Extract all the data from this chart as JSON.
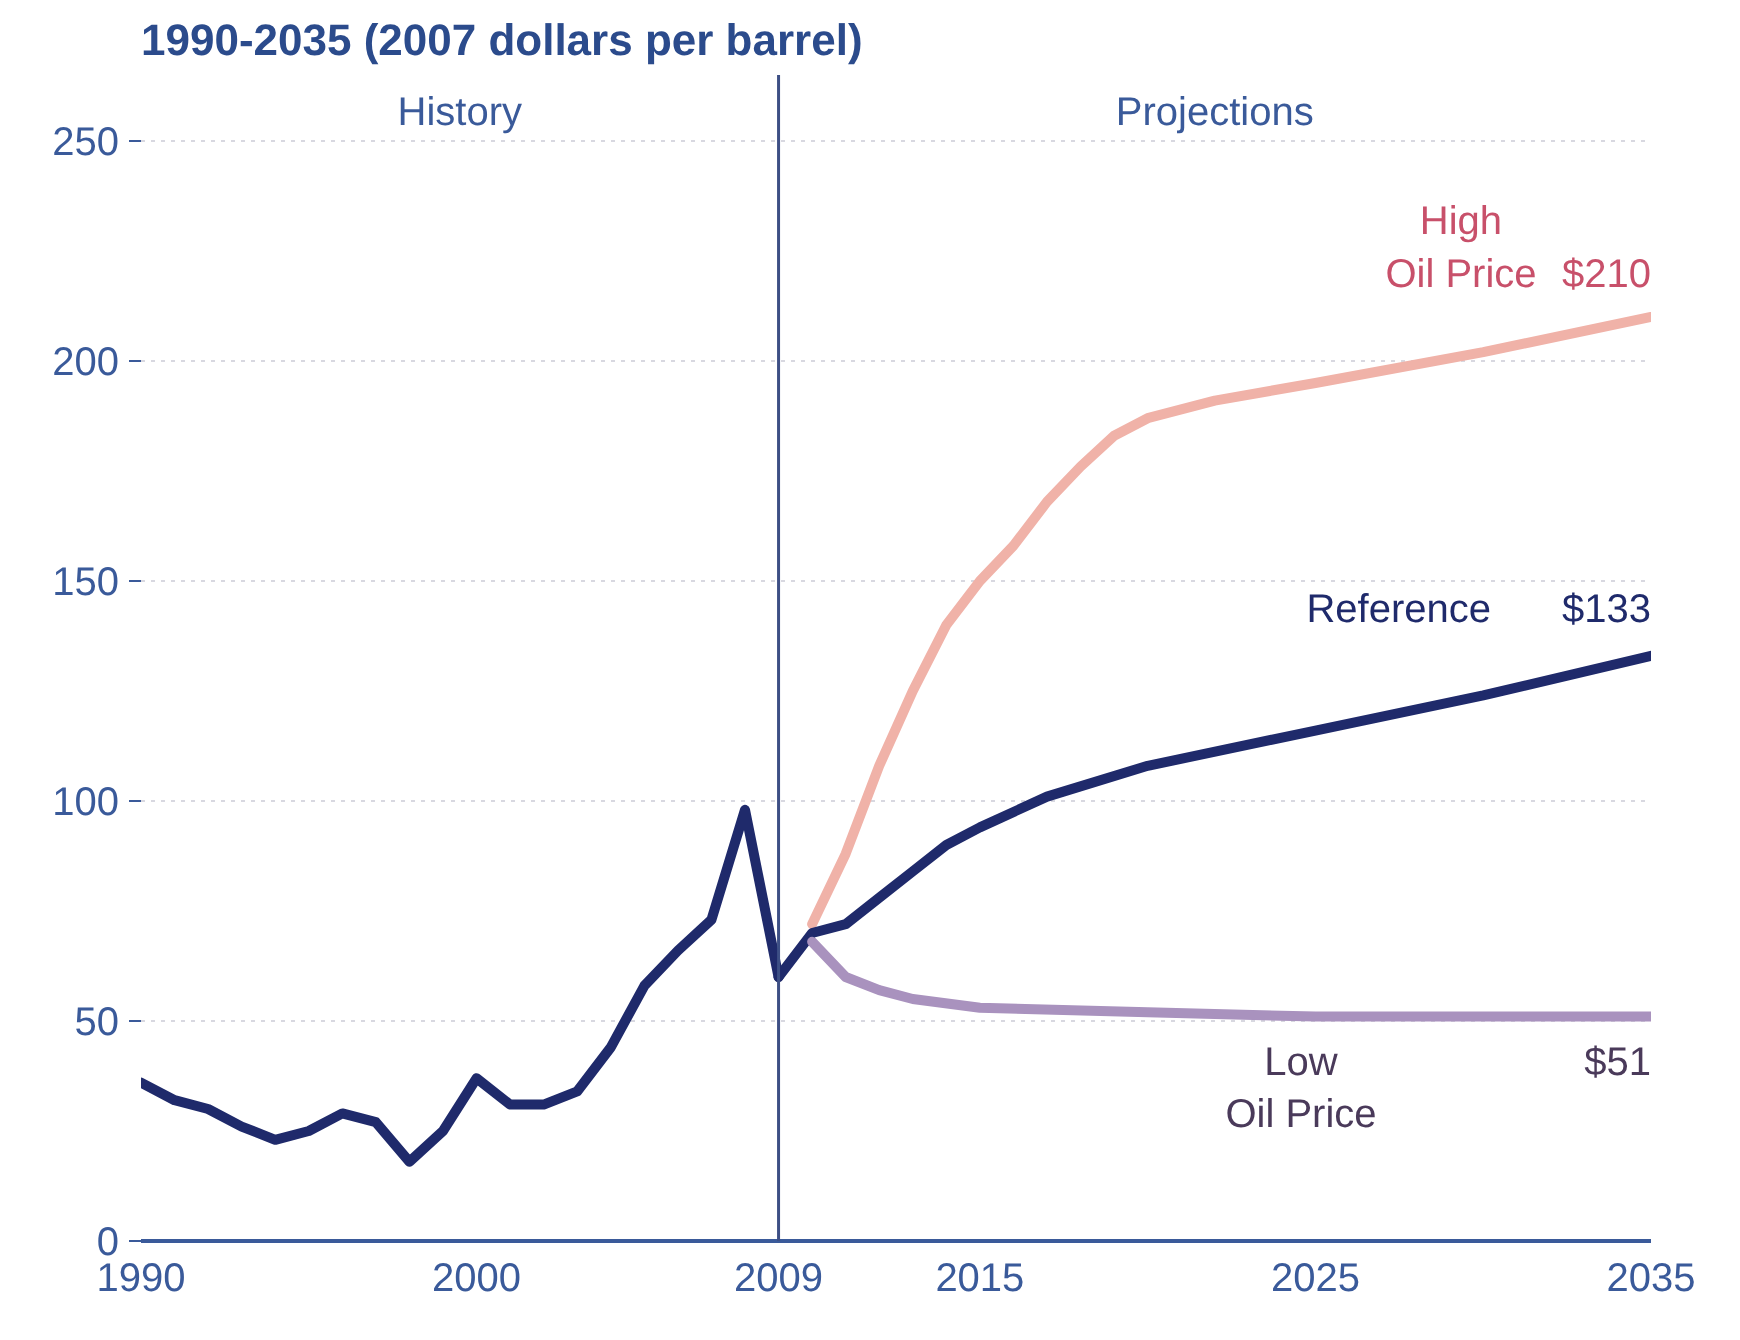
{
  "chart_data": {
    "type": "line",
    "title": "1990-2035 (2007 dollars per barrel)",
    "annotations": [
      "History",
      "Projections"
    ],
    "xlim": [
      1990,
      2035
    ],
    "xticks": [
      1990,
      2000,
      2009,
      2015,
      2025,
      2035
    ],
    "ylim": [
      0,
      265
    ],
    "yticks": [
      0,
      50,
      100,
      150,
      200,
      250
    ],
    "grid": "y",
    "ref_lines": [
      {
        "axis": "x",
        "value": 2009,
        "color": "#3d4f85"
      }
    ],
    "series": [
      {
        "color": "#1f2a6b",
        "x": [
          1990,
          1991,
          1992,
          1993,
          1994,
          1995,
          1996,
          1997,
          1998,
          1999,
          2000,
          2001,
          2002,
          2003,
          2004,
          2005,
          2006,
          2007,
          2008,
          2009
        ],
        "values": [
          36,
          32,
          30,
          26,
          23,
          25,
          29,
          27,
          18,
          25,
          37,
          31,
          31,
          34,
          44,
          58,
          66,
          73,
          98,
          60
        ]
      },
      {
        "name": "High Oil Price",
        "color": "#f0b2a8",
        "x": [
          2010,
          2011,
          2012,
          2013,
          2014,
          2015,
          2016,
          2017,
          2018,
          2019,
          2020,
          2022,
          2025,
          2030,
          2035
        ],
        "values": [
          72,
          88,
          108,
          125,
          140,
          150,
          158,
          168,
          176,
          183,
          187,
          191,
          195,
          202,
          210
        ],
        "value_labels": [
          null,
          null,
          null,
          null,
          null,
          null,
          null,
          null,
          null,
          null,
          null,
          null,
          null,
          null,
          "$210"
        ]
      },
      {
        "name": "Reference",
        "color": "#1f2a6b",
        "x": [
          2009,
          2010,
          2011,
          2012,
          2013,
          2014,
          2015,
          2017,
          2020,
          2025,
          2030,
          2035
        ],
        "values": [
          60,
          70,
          72,
          78,
          84,
          90,
          94,
          101,
          108,
          116,
          124,
          133
        ],
        "value_labels": [
          null,
          null,
          null,
          null,
          null,
          null,
          null,
          null,
          null,
          null,
          null,
          "$133"
        ]
      },
      {
        "name": "Low Oil Price",
        "color": "#a992be",
        "x": [
          2010,
          2011,
          2012,
          2013,
          2015,
          2020,
          2025,
          2030,
          2035
        ],
        "values": [
          68,
          60,
          57,
          55,
          53,
          52,
          51,
          51,
          51
        ],
        "value_labels": [
          null,
          null,
          null,
          null,
          null,
          null,
          null,
          null,
          "$51"
        ]
      }
    ]
  }
}
